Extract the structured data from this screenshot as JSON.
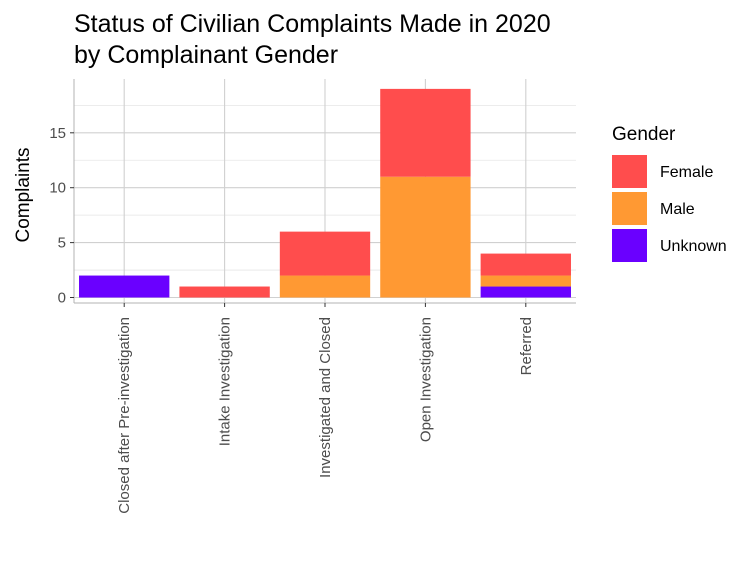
{
  "chart_data": {
    "type": "bar",
    "stacked": true,
    "title": [
      "Status of Civilian Complaints Made in 2020",
      "by Complainant Gender"
    ],
    "xlabel": "",
    "ylabel": "Complaints",
    "ylim": [
      -0.5,
      19.9
    ],
    "yticks": [
      0,
      5,
      10,
      15
    ],
    "categories": [
      "Closed after Pre-investigation",
      "Intake Investigation",
      "Investigated and Closed",
      "Open Investigation",
      "Referred"
    ],
    "series": [
      {
        "name": "Unknown",
        "color": "#6a00ff",
        "values": [
          2,
          0,
          0,
          0,
          1
        ]
      },
      {
        "name": "Male",
        "color": "#ff9933",
        "values": [
          0,
          0,
          2,
          11,
          1
        ]
      },
      {
        "name": "Female",
        "color": "#ff4d4d",
        "values": [
          0,
          1,
          4,
          8,
          2
        ]
      }
    ],
    "legend": {
      "title": "Gender",
      "position": "right",
      "order": [
        "Female",
        "Male",
        "Unknown"
      ]
    },
    "grid": true
  }
}
